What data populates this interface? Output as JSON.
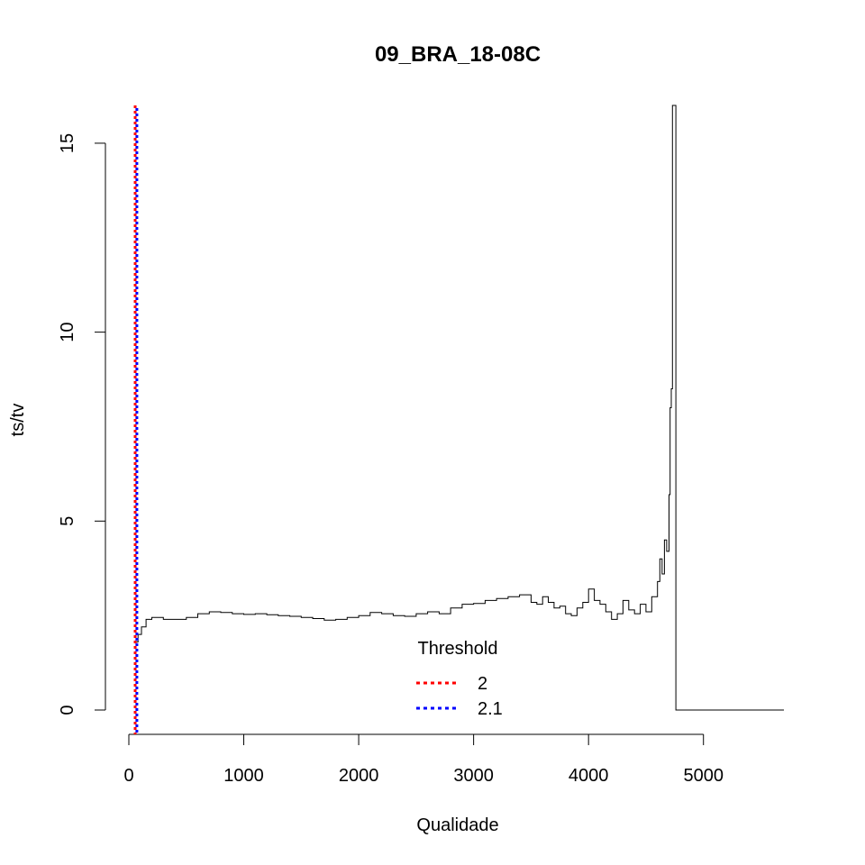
{
  "chart_data": {
    "type": "line",
    "title": "09_BRA_18-08C",
    "xlabel": "Qualidade",
    "ylabel": "ts/tv",
    "xlim": [
      0,
      5700
    ],
    "ylim": [
      0,
      16
    ],
    "xticks": [
      0,
      1000,
      2000,
      3000,
      4000,
      5000
    ],
    "yticks": [
      0,
      5,
      10,
      15
    ],
    "grid": false,
    "series": [
      {
        "name": "",
        "color": "#000000",
        "x": [
          50,
          80,
          110,
          150,
          200,
          300,
          400,
          500,
          600,
          700,
          800,
          900,
          1000,
          1100,
          1200,
          1300,
          1400,
          1500,
          1600,
          1700,
          1800,
          1900,
          2000,
          2100,
          2200,
          2300,
          2400,
          2500,
          2600,
          2700,
          2800,
          2900,
          3000,
          3100,
          3200,
          3300,
          3400,
          3500,
          3550,
          3600,
          3650,
          3700,
          3750,
          3800,
          3850,
          3900,
          3950,
          4000,
          4050,
          4100,
          4150,
          4200,
          4250,
          4300,
          4350,
          4400,
          4450,
          4500,
          4550,
          4600,
          4620,
          4640,
          4660,
          4680,
          4700,
          4710,
          4720,
          4730,
          4740,
          4745,
          4750,
          4760,
          4770,
          4780,
          5700
        ],
        "y": [
          1.8,
          2.0,
          2.2,
          2.4,
          2.45,
          2.4,
          2.4,
          2.45,
          2.55,
          2.6,
          2.58,
          2.55,
          2.53,
          2.55,
          2.52,
          2.5,
          2.48,
          2.45,
          2.42,
          2.38,
          2.4,
          2.45,
          2.5,
          2.58,
          2.55,
          2.5,
          2.48,
          2.55,
          2.6,
          2.55,
          2.7,
          2.8,
          2.82,
          2.9,
          2.95,
          3.0,
          3.05,
          2.85,
          2.8,
          3.0,
          2.85,
          2.7,
          2.75,
          2.55,
          2.5,
          2.7,
          2.85,
          3.2,
          2.9,
          2.8,
          2.6,
          2.4,
          2.55,
          2.9,
          2.65,
          2.55,
          2.8,
          2.6,
          3.0,
          3.4,
          4.0,
          3.6,
          4.5,
          4.2,
          5.7,
          8.0,
          8.5,
          16.0,
          16.0,
          16.0,
          16.0,
          0.0,
          0.0,
          0.0,
          0.0
        ]
      }
    ],
    "vlines": [
      {
        "x": 55,
        "color": "#ff0000",
        "dash": "dotted",
        "label": "2"
      },
      {
        "x": 58,
        "color": "#0000ff",
        "dash": "dotted",
        "label": "2.1"
      }
    ],
    "legend": {
      "title": "Threshold",
      "placement": "bottom-center",
      "entries": [
        {
          "label": "2",
          "color": "#ff0000"
        },
        {
          "label": "2.1",
          "color": "#0000ff"
        }
      ]
    }
  }
}
